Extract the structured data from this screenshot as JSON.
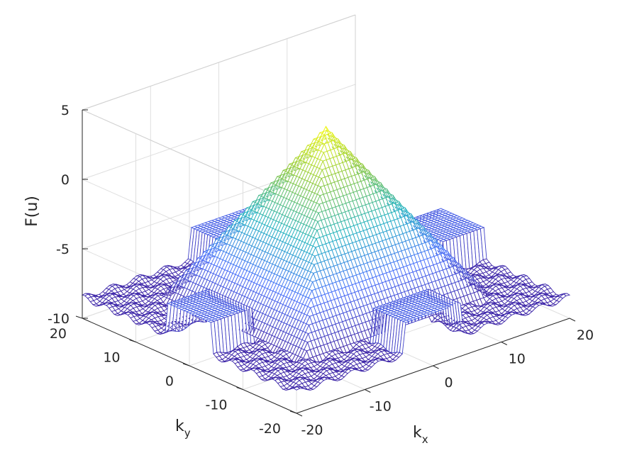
{
  "chart_data": {
    "type": "surface",
    "title": "",
    "xlabel": "k",
    "xlabel_sub": "x",
    "ylabel": "k",
    "ylabel_sub": "y",
    "zlabel": "F(u)",
    "xlim": [
      -20,
      20
    ],
    "ylim": [
      -20,
      20
    ],
    "zlim": [
      -10,
      5
    ],
    "x_ticks": [
      "-20",
      "-10",
      "0",
      "10",
      "20"
    ],
    "y_ticks": [
      "-20",
      "-10",
      "0",
      "10",
      "20"
    ],
    "z_ticks": [
      "-10",
      "-5",
      "0",
      "5"
    ],
    "grid": true,
    "colormap": "parula",
    "colors": {
      "low": "#3e26a8",
      "mid": "#1fb1c0",
      "high": "#f9fb0e"
    },
    "surface": {
      "description_model": "pyramid",
      "peak": 3.8,
      "peak_at": [
        0,
        0
      ],
      "slope_per_unit": 0.9,
      "floor": -8.5,
      "side_plateaus": [
        {
          "kx": [
            -4,
            4
          ],
          "ky": [
            -20,
            -14
          ],
          "z": -6.2
        },
        {
          "kx": [
            -4,
            4
          ],
          "ky": [
            14,
            20
          ],
          "z": -6.2
        },
        {
          "kx": [
            -20,
            -14
          ],
          "ky": [
            -4,
            4
          ],
          "z": -6.2
        },
        {
          "kx": [
            14,
            20
          ],
          "ky": [
            -4,
            4
          ],
          "z": -6.2
        }
      ],
      "grid_resolution": 1
    }
  }
}
